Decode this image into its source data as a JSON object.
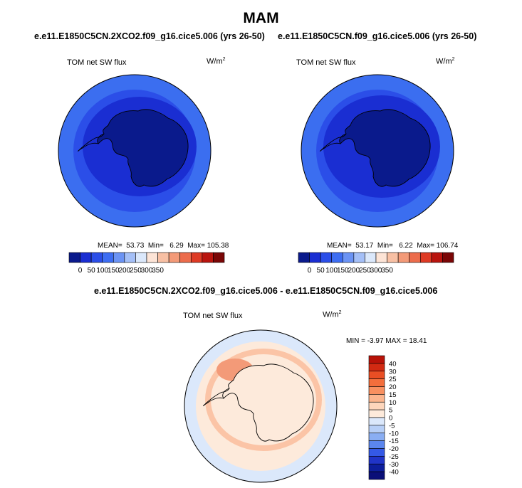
{
  "figure": {
    "title": "MAM",
    "background": "#ffffff"
  },
  "panels": [
    {
      "case": "e.e11.E1850C5CN.2XCO2.f09_g16.cice5.006 (yrs 26-50)",
      "variable": "TOM net SW flux",
      "units_base": "W/m",
      "units_exp": "2",
      "stats": {
        "mean_label": "MEAN=",
        "mean": "53.73",
        "min_label": "Min=",
        "min": "6.29",
        "max_label": "Max=",
        "max": "105.38"
      }
    },
    {
      "case": "e.e11.E1850C5CN.f09_g16.cice5.006 (yrs 26-50)",
      "variable": "TOM net SW flux",
      "units_base": "W/m",
      "units_exp": "2",
      "stats": {
        "mean_label": "MEAN=",
        "mean": "53.17",
        "min_label": "Min=",
        "min": "6.22",
        "max_label": "Max=",
        "max": "106.74"
      }
    }
  ],
  "diff_panel": {
    "title": "e.e11.E1850C5CN.2XCO2.f09_g16.cice5.006 - e.e11.E1850C5CN.f09_g16.cice5.006",
    "variable": "TOM net SW flux",
    "units_base": "W/m",
    "units_exp": "2",
    "stats_text": "MIN = -3.97 MAX = 18.41"
  },
  "abs_colorbar": {
    "colors": [
      "#0a1a8c",
      "#1a2ed2",
      "#2b4ee8",
      "#3d6df2",
      "#6b93f4",
      "#a4bff7",
      "#dbe8fb",
      "#fde4d6",
      "#f8c0a4",
      "#f39a78",
      "#ec6c4c",
      "#de3a24",
      "#b9140e",
      "#7a0606"
    ],
    "labels": [
      "0",
      "50",
      "100",
      "150",
      "200",
      "250",
      "300",
      "350"
    ]
  },
  "diff_colorbar": {
    "colors": [
      "#b81208",
      "#d22a12",
      "#e94e24",
      "#f36e3c",
      "#f89060",
      "#fbb58e",
      "#fdd6bc",
      "#fdeadb",
      "#dbe8fb",
      "#b7cff7",
      "#8aaef3",
      "#5b86ee",
      "#3459e6",
      "#2034c8",
      "#0d1e9c",
      "#0a0f78"
    ],
    "labels": [
      "40",
      "30",
      "25",
      "20",
      "15",
      "10",
      "5",
      "0",
      "-5",
      "-10",
      "-15",
      "-20",
      "-25",
      "-30",
      "-40"
    ]
  },
  "map_colors": {
    "ocean_outer": "#3b6ef0",
    "ocean_inner": "#2b4ee8",
    "ice_ring": "#1a2ed2",
    "continent": "#0a1a8c",
    "diff_base": "#fdeadb",
    "diff_ocean_neg": "#dbe8fb",
    "diff_pos_ring": "#fbc4a6",
    "diff_peak": "#f39a78",
    "coast": "#000000"
  }
}
